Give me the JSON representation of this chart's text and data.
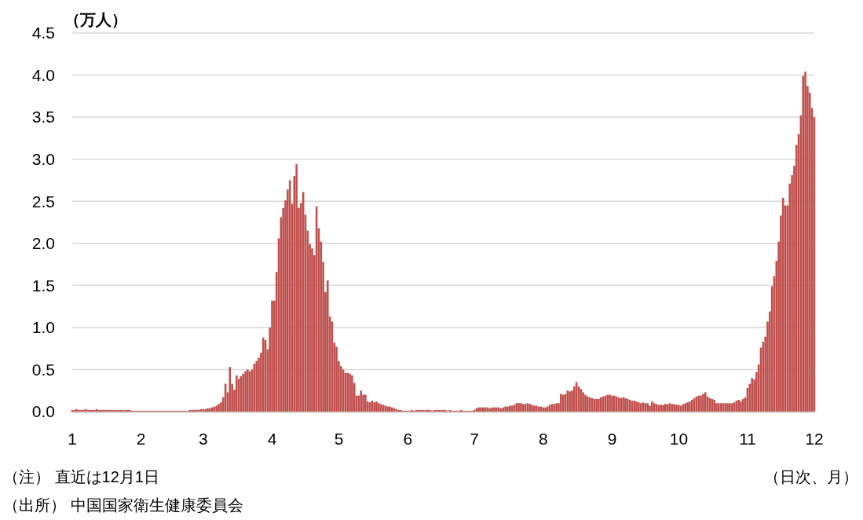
{
  "chart_data": {
    "type": "bar",
    "ylabel": "（万人）",
    "xlabel": "（日次、月）",
    "annotations": [
      "（注） 直近は12月1日",
      "（出所） 中国国家衛生健康委員会"
    ],
    "xlim": [
      "--01-01",
      "--12-01"
    ],
    "xticks": [
      {
        "value": "--01-01",
        "label": "1"
      },
      {
        "value": "--02-01",
        "label": "2"
      },
      {
        "value": "--03-01",
        "label": "3"
      },
      {
        "value": "--04-01",
        "label": "4"
      },
      {
        "value": "--05-01",
        "label": "5"
      },
      {
        "value": "--06-01",
        "label": "6"
      },
      {
        "value": "--07-01",
        "label": "7"
      },
      {
        "value": "--08-01",
        "label": "8"
      },
      {
        "value": "--09-01",
        "label": "9"
      },
      {
        "value": "--10-01",
        "label": "10"
      },
      {
        "value": "--11-01",
        "label": "11"
      },
      {
        "value": "--12-01",
        "label": "12"
      }
    ],
    "ylim": [
      0,
      4.5
    ],
    "yticks": [
      {
        "value": 0,
        "label": "0.0"
      },
      0.5,
      {
        "value": 1,
        "label": "1.0"
      },
      1.5,
      {
        "value": 2,
        "label": "2.0"
      },
      2.5,
      {
        "value": 3,
        "label": "3.0"
      },
      3.5,
      {
        "value": 4,
        "label": "4.0"
      },
      4.5
    ],
    "grid": "y",
    "color": "#c0504d",
    "x": [
      "--01-01",
      "--01-02",
      "--01-03",
      "--01-04",
      "--01-05",
      "--01-06",
      "--01-07",
      "--01-08",
      "--01-09",
      "--01-10",
      "--01-11",
      "--01-12",
      "--01-13",
      "--01-14",
      "--01-15",
      "--01-16",
      "--01-17",
      "--01-18",
      "--01-19",
      "--01-20",
      "--01-21",
      "--01-22",
      "--01-23",
      "--01-24",
      "--01-25",
      "--01-26",
      "--01-27",
      "--01-28",
      "--01-29",
      "--01-30",
      "--01-31",
      "--02-01",
      "--02-02",
      "--02-03",
      "--02-04",
      "--02-05",
      "--02-06",
      "--02-07",
      "--02-08",
      "--02-09",
      "--02-10",
      "--02-11",
      "--02-12",
      "--02-13",
      "--02-14",
      "--02-15",
      "--02-16",
      "--02-17",
      "--02-18",
      "--02-19",
      "--02-20",
      "--02-21",
      "--02-22",
      "--02-23",
      "--02-24",
      "--02-25",
      "--02-26",
      "--02-27",
      "--02-28",
      "--03-01",
      "--03-02",
      "--03-03",
      "--03-04",
      "--03-05",
      "--03-06",
      "--03-07",
      "--03-08",
      "--03-09",
      "--03-10",
      "--03-11",
      "--03-12",
      "--03-13",
      "--03-14",
      "--03-15",
      "--03-16",
      "--03-17",
      "--03-18",
      "--03-19",
      "--03-20",
      "--03-21",
      "--03-22",
      "--03-23",
      "--03-24",
      "--03-25",
      "--03-26",
      "--03-27",
      "--03-28",
      "--03-29",
      "--03-30",
      "--03-31",
      "--04-01",
      "--04-02",
      "--04-03",
      "--04-04",
      "--04-05",
      "--04-06",
      "--04-07",
      "--04-08",
      "--04-09",
      "--04-10",
      "--04-11",
      "--04-12",
      "--04-13",
      "--04-14",
      "--04-15",
      "--04-16",
      "--04-17",
      "--04-18",
      "--04-19",
      "--04-20",
      "--04-21",
      "--04-22",
      "--04-23",
      "--04-24",
      "--04-25",
      "--04-26",
      "--04-27",
      "--04-28",
      "--04-29",
      "--04-30",
      "--05-01",
      "--05-02",
      "--05-03",
      "--05-04",
      "--05-05",
      "--05-06",
      "--05-07",
      "--05-08",
      "--05-09",
      "--05-10",
      "--05-11",
      "--05-12",
      "--05-13",
      "--05-14",
      "--05-15",
      "--05-16",
      "--05-17",
      "--05-18",
      "--05-19",
      "--05-20",
      "--05-21",
      "--05-22",
      "--05-23",
      "--05-24",
      "--05-25",
      "--05-26",
      "--05-27",
      "--05-28",
      "--05-29",
      "--05-30",
      "--05-31",
      "--06-01",
      "--06-02",
      "--06-03",
      "--06-04",
      "--06-05",
      "--06-06",
      "--06-07",
      "--06-08",
      "--06-09",
      "--06-10",
      "--06-11",
      "--06-12",
      "--06-13",
      "--06-14",
      "--06-15",
      "--06-16",
      "--06-17",
      "--06-18",
      "--06-19",
      "--06-20",
      "--06-21",
      "--06-22",
      "--06-23",
      "--06-24",
      "--06-25",
      "--06-26",
      "--06-27",
      "--06-28",
      "--06-29",
      "--06-30",
      "--07-01",
      "--07-02",
      "--07-03",
      "--07-04",
      "--07-05",
      "--07-06",
      "--07-07",
      "--07-08",
      "--07-09",
      "--07-10",
      "--07-11",
      "--07-12",
      "--07-13",
      "--07-14",
      "--07-15",
      "--07-16",
      "--07-17",
      "--07-18",
      "--07-19",
      "--07-20",
      "--07-21",
      "--07-22",
      "--07-23",
      "--07-24",
      "--07-25",
      "--07-26",
      "--07-27",
      "--07-28",
      "--07-29",
      "--07-30",
      "--07-31",
      "--08-01",
      "--08-02",
      "--08-03",
      "--08-04",
      "--08-05",
      "--08-06",
      "--08-07",
      "--08-08",
      "--08-09",
      "--08-10",
      "--08-11",
      "--08-12",
      "--08-13",
      "--08-14",
      "--08-15",
      "--08-16",
      "--08-17",
      "--08-18",
      "--08-19",
      "--08-20",
      "--08-21",
      "--08-22",
      "--08-23",
      "--08-24",
      "--08-25",
      "--08-26",
      "--08-27",
      "--08-28",
      "--08-29",
      "--08-30",
      "--08-31",
      "--09-01",
      "--09-02",
      "--09-03",
      "--09-04",
      "--09-05",
      "--09-06",
      "--09-07",
      "--09-08",
      "--09-09",
      "--09-10",
      "--09-11",
      "--09-12",
      "--09-13",
      "--09-14",
      "--09-15",
      "--09-16",
      "--09-17",
      "--09-18",
      "--09-19",
      "--09-20",
      "--09-21",
      "--09-22",
      "--09-23",
      "--09-24",
      "--09-25",
      "--09-26",
      "--09-27",
      "--09-28",
      "--09-29",
      "--09-30",
      "--10-01",
      "--10-02",
      "--10-03",
      "--10-04",
      "--10-05",
      "--10-06",
      "--10-07",
      "--10-08",
      "--10-09",
      "--10-10",
      "--10-11",
      "--10-12",
      "--10-13",
      "--10-14",
      "--10-15",
      "--10-16",
      "--10-17",
      "--10-18",
      "--10-19",
      "--10-20",
      "--10-21",
      "--10-22",
      "--10-23",
      "--10-24",
      "--10-25",
      "--10-26",
      "--10-27",
      "--10-28",
      "--10-29",
      "--10-30",
      "--10-31",
      "--11-01",
      "--11-02",
      "--11-03",
      "--11-04",
      "--11-05",
      "--11-06",
      "--11-07",
      "--11-08",
      "--11-09",
      "--11-10",
      "--11-11",
      "--11-12",
      "--11-13",
      "--11-14",
      "--11-15",
      "--11-16",
      "--11-17",
      "--11-18",
      "--11-19",
      "--11-20",
      "--11-21",
      "--11-22",
      "--11-23",
      "--11-24",
      "--11-25",
      "--11-26",
      "--11-27",
      "--11-28",
      "--11-29",
      "--11-30",
      "--12-01"
    ],
    "values": [
      0.02,
      0.02,
      0.03,
      0.02,
      0.02,
      0.02,
      0.03,
      0.02,
      0.02,
      0.02,
      0.02,
      0.03,
      0.02,
      0.02,
      0.02,
      0.02,
      0.02,
      0.02,
      0.02,
      0.02,
      0.02,
      0.02,
      0.02,
      0.02,
      0.02,
      0.02,
      0.02,
      0.01,
      0.01,
      0.01,
      0.01,
      0.01,
      0.01,
      0.01,
      0.01,
      0.01,
      0.01,
      0.01,
      0.01,
      0.01,
      0.01,
      0.01,
      0.01,
      0.01,
      0.01,
      0.01,
      0.01,
      0.01,
      0.01,
      0.01,
      0.01,
      0.01,
      0.01,
      0.02,
      0.02,
      0.02,
      0.02,
      0.02,
      0.03,
      0.03,
      0.03,
      0.04,
      0.04,
      0.05,
      0.06,
      0.07,
      0.09,
      0.11,
      0.17,
      0.33,
      0.23,
      0.53,
      0.33,
      0.26,
      0.43,
      0.39,
      0.42,
      0.45,
      0.48,
      0.5,
      0.48,
      0.5,
      0.57,
      0.6,
      0.64,
      0.7,
      0.88,
      0.85,
      0.74,
      1.0,
      1.32,
      1.32,
      1.66,
      2.06,
      2.31,
      2.42,
      2.51,
      2.64,
      2.75,
      2.47,
      2.8,
      2.94,
      2.42,
      2.48,
      2.61,
      2.34,
      2.15,
      1.99,
      1.94,
      1.86,
      2.44,
      2.18,
      2.02,
      1.78,
      1.42,
      1.56,
      1.13,
      1.07,
      0.82,
      0.77,
      0.6,
      0.54,
      0.5,
      0.46,
      0.46,
      0.45,
      0.43,
      0.34,
      0.19,
      0.19,
      0.25,
      0.2,
      0.2,
      0.12,
      0.11,
      0.13,
      0.11,
      0.12,
      0.1,
      0.09,
      0.08,
      0.07,
      0.06,
      0.06,
      0.05,
      0.04,
      0.03,
      0.02,
      0.02,
      0.01,
      0.01,
      0.01,
      0.01,
      0.02,
      0.01,
      0.02,
      0.02,
      0.02,
      0.02,
      0.02,
      0.02,
      0.02,
      0.01,
      0.02,
      0.02,
      0.02,
      0.02,
      0.02,
      0.02,
      0.01,
      0.02,
      0.01,
      0.01,
      0.01,
      0.01,
      0.02,
      0.01,
      0.01,
      0.01,
      0.01,
      0.01,
      0.02,
      0.04,
      0.05,
      0.05,
      0.05,
      0.05,
      0.05,
      0.04,
      0.05,
      0.05,
      0.05,
      0.05,
      0.04,
      0.05,
      0.06,
      0.06,
      0.07,
      0.07,
      0.08,
      0.1,
      0.1,
      0.1,
      0.09,
      0.09,
      0.1,
      0.09,
      0.08,
      0.07,
      0.07,
      0.06,
      0.06,
      0.05,
      0.05,
      0.06,
      0.08,
      0.09,
      0.09,
      0.1,
      0.1,
      0.21,
      0.2,
      0.21,
      0.25,
      0.24,
      0.25,
      0.3,
      0.35,
      0.3,
      0.27,
      0.23,
      0.2,
      0.18,
      0.17,
      0.16,
      0.15,
      0.15,
      0.15,
      0.17,
      0.18,
      0.19,
      0.2,
      0.2,
      0.19,
      0.19,
      0.18,
      0.17,
      0.16,
      0.17,
      0.16,
      0.15,
      0.14,
      0.13,
      0.13,
      0.12,
      0.11,
      0.1,
      0.11,
      0.1,
      0.1,
      0.07,
      0.12,
      0.1,
      0.09,
      0.08,
      0.08,
      0.08,
      0.09,
      0.09,
      0.1,
      0.09,
      0.09,
      0.08,
      0.08,
      0.07,
      0.09,
      0.1,
      0.11,
      0.12,
      0.14,
      0.16,
      0.18,
      0.19,
      0.19,
      0.21,
      0.23,
      0.18,
      0.16,
      0.15,
      0.14,
      0.1,
      0.1,
      0.1,
      0.1,
      0.1,
      0.1,
      0.1,
      0.1,
      0.11,
      0.13,
      0.14,
      0.12,
      0.15,
      0.17,
      0.28,
      0.33,
      0.4,
      0.38,
      0.47,
      0.56,
      0.76,
      0.83,
      0.89,
      1.07,
      1.19,
      1.49,
      1.61,
      1.79,
      2.02,
      2.33,
      2.54,
      2.45,
      2.45,
      2.71,
      2.81,
      2.92,
      3.17,
      3.3,
      3.52,
      3.99,
      4.04,
      3.87,
      3.79,
      3.61,
      3.5
    ]
  }
}
